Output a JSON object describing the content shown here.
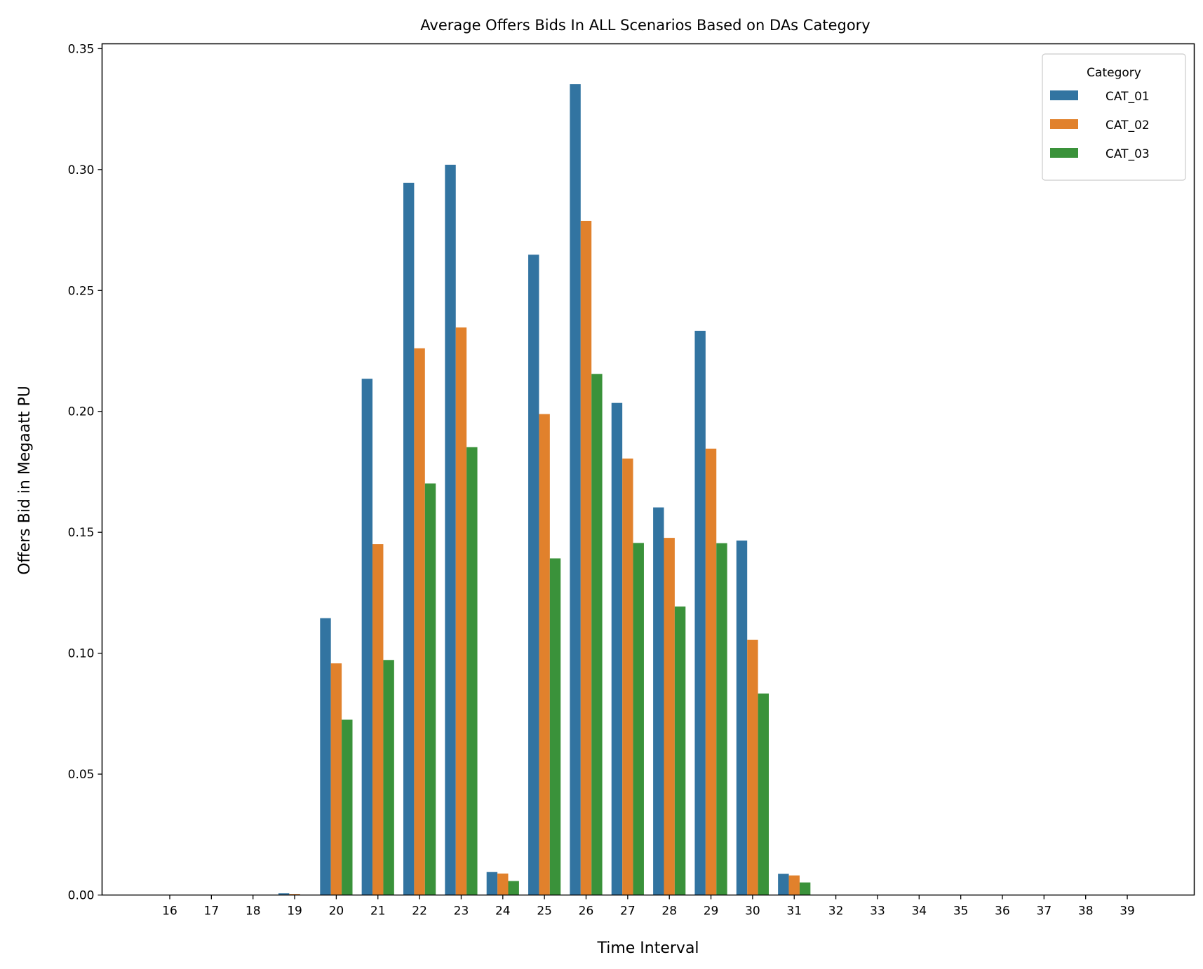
{
  "colors": {
    "CAT_01": "#3274a1",
    "CAT_02": "#e1812c",
    "CAT_03": "#3a923a"
  },
  "chart_data": {
    "type": "bar",
    "title": "Average Offers Bids In ALL Scenarios Based on DAs Category",
    "xlabel": "Time Interval",
    "ylabel": "Offers Bid in Megaatt PU",
    "ylim": [
      0,
      0.352
    ],
    "yticks": [
      "0.00",
      "0.05",
      "0.10",
      "0.15",
      "0.20",
      "0.25",
      "0.30",
      "0.35"
    ],
    "ytick_values": [
      0,
      0.05,
      0.1,
      0.15,
      0.2,
      0.25,
      0.3,
      0.35
    ],
    "grid": false,
    "legend_position": "top-right",
    "legend_title": "Category",
    "categories": [
      "16",
      "17",
      "18",
      "19",
      "20",
      "21",
      "22",
      "23",
      "24",
      "25",
      "26",
      "27",
      "28",
      "29",
      "30",
      "31",
      "32",
      "33",
      "34",
      "35",
      "36",
      "37",
      "38",
      "39"
    ],
    "series": [
      {
        "name": "CAT_01",
        "values": [
          0,
          0,
          0,
          0.0007,
          0.1145,
          0.2135,
          0.2945,
          0.302,
          0.0095,
          0.2648,
          0.3353,
          0.2035,
          0.1603,
          0.2333,
          0.1466,
          0.0088,
          0,
          0,
          0,
          0,
          0,
          0,
          0,
          0
        ]
      },
      {
        "name": "CAT_02",
        "values": [
          0,
          0,
          0,
          0.0004,
          0.0958,
          0.1451,
          0.2261,
          0.2347,
          0.0089,
          0.1989,
          0.2788,
          0.1805,
          0.1477,
          0.1846,
          0.1055,
          0.0081,
          0,
          0,
          0,
          0,
          0,
          0,
          0,
          0
        ]
      },
      {
        "name": "CAT_03",
        "values": [
          0,
          0,
          0,
          0,
          0.0725,
          0.0972,
          0.1702,
          0.1852,
          0.0058,
          0.1392,
          0.2155,
          0.1456,
          0.1193,
          0.1455,
          0.0833,
          0.0052,
          0,
          0,
          0,
          0,
          0,
          0,
          0,
          0
        ]
      }
    ]
  }
}
